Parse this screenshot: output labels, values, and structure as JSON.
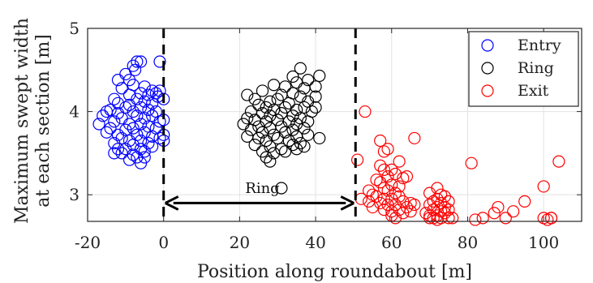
{
  "chart_data": {
    "type": "scatter",
    "xlabel": "Position along roundabout [m]",
    "ylabel_lines": [
      "Maximum swept width",
      "at each section [m]"
    ],
    "xlim": [
      -20,
      110
    ],
    "ylim": [
      2.68,
      5.0
    ],
    "xticks": [
      -20,
      0,
      20,
      40,
      60,
      80,
      100
    ],
    "yticks": [
      3,
      4,
      5
    ],
    "grid": true,
    "legend_position": "top-right",
    "colors": {
      "Entry": "#0000ff",
      "Ring": "#000000",
      "Exit": "#ff0000"
    },
    "vlines": [
      0,
      50.5
    ],
    "annotation": {
      "text": "Ring",
      "x_start": 0,
      "x_end": 50.5,
      "arrow_y": 2.9,
      "label_x": 26,
      "label_y": 3.08
    },
    "series": [
      {
        "name": "Entry",
        "points": [
          [
            -6,
            4.6
          ],
          [
            -7,
            4.6
          ],
          [
            -8,
            4.55
          ],
          [
            -1,
            4.6
          ],
          [
            -7.5,
            4.5
          ],
          [
            -10,
            4.45
          ],
          [
            -9,
            4.38
          ],
          [
            -12,
            4.38
          ],
          [
            -5,
            4.3
          ],
          [
            -8,
            4.32
          ],
          [
            -3,
            4.25
          ],
          [
            -1,
            4.25
          ],
          [
            -11,
            4.28
          ],
          [
            -6,
            4.22
          ],
          [
            -4,
            4.2
          ],
          [
            -9,
            4.2
          ],
          [
            -2,
            4.22
          ],
          [
            -1.5,
            4.18
          ],
          [
            -13,
            4.15
          ],
          [
            -12,
            4.1
          ],
          [
            -7,
            4.15
          ],
          [
            -5,
            4.12
          ],
          [
            -3,
            4.1
          ],
          [
            0,
            4.15
          ],
          [
            -15,
            4.0
          ],
          [
            -14,
            4.02
          ],
          [
            -10,
            4.05
          ],
          [
            -9,
            4.08
          ],
          [
            -8,
            4.0
          ],
          [
            -6,
            4.05
          ],
          [
            -4,
            4.02
          ],
          [
            -2,
            4.0
          ],
          [
            -16,
            3.95
          ],
          [
            -12,
            3.98
          ],
          [
            -11,
            3.92
          ],
          [
            -7,
            3.95
          ],
          [
            -5,
            3.92
          ],
          [
            -3,
            3.95
          ],
          [
            -1,
            3.88
          ],
          [
            0,
            3.9
          ],
          [
            -17,
            3.85
          ],
          [
            -13,
            3.88
          ],
          [
            -9,
            3.85
          ],
          [
            -6,
            3.85
          ],
          [
            -4,
            3.82
          ],
          [
            -14,
            3.8
          ],
          [
            -10,
            3.78
          ],
          [
            -8,
            3.8
          ],
          [
            -2,
            3.8
          ],
          [
            -15,
            3.75
          ],
          [
            -12,
            3.72
          ],
          [
            -7,
            3.72
          ],
          [
            -5,
            3.75
          ],
          [
            -3,
            3.7
          ],
          [
            0,
            3.72
          ],
          [
            -11,
            3.68
          ],
          [
            -9,
            3.65
          ],
          [
            -6,
            3.65
          ],
          [
            -1,
            3.68
          ],
          [
            -13,
            3.62
          ],
          [
            -8,
            3.6
          ],
          [
            -4,
            3.62
          ],
          [
            -12,
            3.55
          ],
          [
            -10,
            3.55
          ],
          [
            -6,
            3.55
          ],
          [
            -3,
            3.58
          ],
          [
            0,
            3.65
          ],
          [
            -11,
            3.5
          ],
          [
            -8,
            3.48
          ],
          [
            -5,
            3.52
          ],
          [
            -13,
            3.5
          ],
          [
            -7,
            3.45
          ],
          [
            -9,
            3.42
          ],
          [
            -6,
            3.38
          ],
          [
            -5,
            3.45
          ]
        ]
      },
      {
        "name": "Ring",
        "points": [
          [
            36,
            4.52
          ],
          [
            34,
            4.42
          ],
          [
            38,
            4.38
          ],
          [
            41,
            4.43
          ],
          [
            29,
            4.32
          ],
          [
            32,
            4.3
          ],
          [
            35,
            4.35
          ],
          [
            37,
            4.28
          ],
          [
            40,
            4.3
          ],
          [
            26,
            4.25
          ],
          [
            31,
            4.2
          ],
          [
            34,
            4.22
          ],
          [
            36,
            4.18
          ],
          [
            22,
            4.2
          ],
          [
            24,
            4.15
          ],
          [
            28,
            4.12
          ],
          [
            30,
            4.15
          ],
          [
            33,
            4.1
          ],
          [
            38,
            4.12
          ],
          [
            40,
            4.18
          ],
          [
            25,
            4.08
          ],
          [
            27,
            4.05
          ],
          [
            29,
            4.02
          ],
          [
            32,
            4.05
          ],
          [
            35,
            4.02
          ],
          [
            37,
            4.05
          ],
          [
            39,
            4.0
          ],
          [
            23,
            4.0
          ],
          [
            26,
            3.98
          ],
          [
            28,
            3.95
          ],
          [
            31,
            3.98
          ],
          [
            34,
            3.95
          ],
          [
            36,
            3.92
          ],
          [
            40,
            4.05
          ],
          [
            22,
            3.92
          ],
          [
            24,
            3.9
          ],
          [
            27,
            3.88
          ],
          [
            30,
            3.9
          ],
          [
            33,
            3.88
          ],
          [
            35,
            3.85
          ],
          [
            38,
            3.88
          ],
          [
            21,
            3.85
          ],
          [
            25,
            3.82
          ],
          [
            28,
            3.8
          ],
          [
            31,
            3.82
          ],
          [
            34,
            3.78
          ],
          [
            37,
            3.8
          ],
          [
            23,
            3.78
          ],
          [
            26,
            3.75
          ],
          [
            29,
            3.72
          ],
          [
            32,
            3.75
          ],
          [
            35,
            3.7
          ],
          [
            38,
            3.72
          ],
          [
            22,
            3.7
          ],
          [
            25,
            3.68
          ],
          [
            27,
            3.65
          ],
          [
            30,
            3.68
          ],
          [
            33,
            3.65
          ],
          [
            36,
            3.62
          ],
          [
            41,
            3.68
          ],
          [
            24,
            3.6
          ],
          [
            28,
            3.58
          ],
          [
            31,
            3.55
          ],
          [
            34,
            3.6
          ],
          [
            37,
            3.58
          ],
          [
            26,
            3.52
          ],
          [
            29,
            3.5
          ],
          [
            32,
            3.52
          ],
          [
            35,
            3.55
          ],
          [
            27,
            3.45
          ],
          [
            28,
            3.4
          ],
          [
            31,
            3.08
          ]
        ]
      },
      {
        "name": "Exit",
        "points": [
          [
            53,
            4.0
          ],
          [
            51,
            3.42
          ],
          [
            57,
            3.65
          ],
          [
            59,
            3.55
          ],
          [
            58,
            3.52
          ],
          [
            62,
            3.4
          ],
          [
            66,
            3.68
          ],
          [
            81,
            3.38
          ],
          [
            104,
            3.4
          ],
          [
            57,
            3.35
          ],
          [
            58,
            3.3
          ],
          [
            60,
            3.3
          ],
          [
            59,
            3.22
          ],
          [
            61,
            3.25
          ],
          [
            63,
            3.2
          ],
          [
            64,
            3.22
          ],
          [
            56,
            3.18
          ],
          [
            57,
            3.15
          ],
          [
            60,
            3.12
          ],
          [
            62,
            3.1
          ],
          [
            58,
            3.08
          ],
          [
            59,
            3.05
          ],
          [
            61,
            3.02
          ],
          [
            54,
            3.05
          ],
          [
            55,
            3.0
          ],
          [
            56,
            2.98
          ],
          [
            58,
            2.95
          ],
          [
            60,
            2.95
          ],
          [
            62,
            2.98
          ],
          [
            63,
            2.92
          ],
          [
            65,
            2.9
          ],
          [
            52,
            2.95
          ],
          [
            54,
            2.92
          ],
          [
            57,
            2.9
          ],
          [
            59,
            2.88
          ],
          [
            61,
            2.88
          ],
          [
            64,
            2.85
          ],
          [
            66,
            2.88
          ],
          [
            55,
            2.85
          ],
          [
            58,
            2.82
          ],
          [
            60,
            2.8
          ],
          [
            62,
            2.82
          ],
          [
            63,
            2.78
          ],
          [
            65,
            2.8
          ],
          [
            60,
            2.75
          ],
          [
            61,
            2.72
          ],
          [
            72,
            3.08
          ],
          [
            70,
            3.02
          ],
          [
            73,
            3.0
          ],
          [
            72,
            2.95
          ],
          [
            74,
            2.98
          ],
          [
            71,
            2.92
          ],
          [
            73,
            2.9
          ],
          [
            75,
            2.92
          ],
          [
            70,
            2.88
          ],
          [
            72,
            2.85
          ],
          [
            74,
            2.85
          ],
          [
            71,
            2.82
          ],
          [
            73,
            2.8
          ],
          [
            75,
            2.82
          ],
          [
            69,
            2.78
          ],
          [
            70,
            2.75
          ],
          [
            72,
            2.75
          ],
          [
            74,
            2.78
          ],
          [
            71,
            2.72
          ],
          [
            73,
            2.72
          ],
          [
            75,
            2.72
          ],
          [
            72,
            2.7
          ],
          [
            76,
            2.72
          ],
          [
            70,
            2.72
          ],
          [
            84,
            2.72
          ],
          [
            87,
            2.78
          ],
          [
            88,
            2.85
          ],
          [
            90,
            2.72
          ],
          [
            92,
            2.8
          ],
          [
            95,
            2.92
          ],
          [
            100,
            2.72
          ],
          [
            101,
            2.7
          ],
          [
            102,
            2.72
          ],
          [
            100,
            3.1
          ],
          [
            82,
            2.7
          ],
          [
            102,
            2.72
          ]
        ]
      }
    ]
  }
}
